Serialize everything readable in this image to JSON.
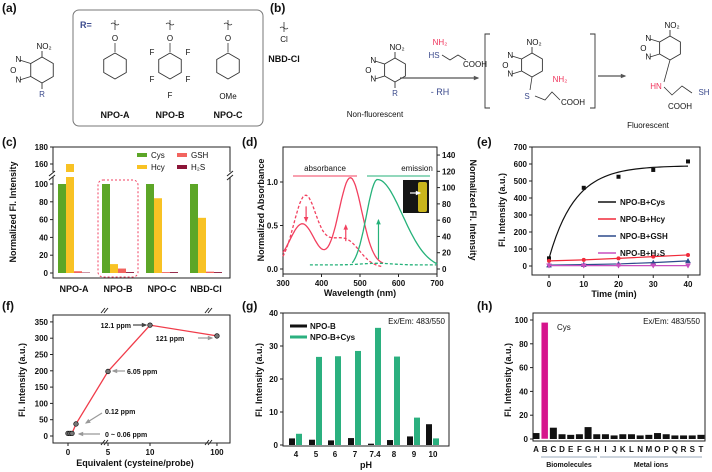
{
  "panel_letters": [
    "(a)",
    "(b)",
    "(c)",
    "(d)",
    "(e)",
    "(f)",
    "(g)",
    "(h)"
  ],
  "scheme_a": {
    "core_substituents": {
      "top": "NO2",
      "bottom": "R",
      "ring_atoms": [
        "N",
        "O",
        "N"
      ]
    },
    "r_label": "R=",
    "compounds": [
      {
        "name": "NPO-A",
        "group": "O-phenyl"
      },
      {
        "name": "NPO-B",
        "group": "O-pentafluorophenyl",
        "atoms": [
          "F",
          "F",
          "F",
          "F",
          "F"
        ]
      },
      {
        "name": "NPO-C",
        "group": "O-(4-methoxyphenyl)",
        "atoms": [
          "OMe"
        ]
      },
      {
        "name": "NBD-Cl",
        "group": "Cl"
      }
    ],
    "atom_o": "O",
    "atom_cl": "Cl"
  },
  "scheme_b": {
    "start_caption": "Non-fluorescent",
    "reagent": {
      "nh2": "NH2",
      "sh": "HS",
      "cooh": "COOH"
    },
    "arrow_label": "- RH",
    "intermediate": {
      "s": "S",
      "nh2": "NH2",
      "cooh": "COOH"
    },
    "product": {
      "hn": "HN",
      "sh": "SH",
      "cooh": "COOH"
    },
    "end_caption": "Fluorescent",
    "no2": "NO2",
    "colors": {
      "amine": "#f0325a",
      "r_group": "#3b4a8c"
    }
  },
  "chart_data": [
    {
      "panel": "(c)",
      "type": "bar",
      "ylabel": "Normalized Fl. Intensity",
      "categories": [
        "NPO-A",
        "NPO-B",
        "NPO-C",
        "NBD-Cl"
      ],
      "series": [
        {
          "name": "Cys",
          "color": "#5ca627",
          "values": [
            100,
            100,
            100,
            100
          ]
        },
        {
          "name": "Hcy",
          "color": "#f8c224",
          "values": [
            160,
            10,
            84,
            62
          ]
        },
        {
          "name": "GSH",
          "color": "#f2645f",
          "values": [
            2,
            5,
            1,
            1.5
          ]
        },
        {
          "name": "H2S",
          "color": "#8c1538",
          "values": [
            0.5,
            1,
            1,
            1
          ]
        }
      ],
      "yticks": [
        0,
        20,
        40,
        60,
        80,
        100,
        160,
        180
      ],
      "y_axis_break": [
        105,
        150
      ],
      "ylim": [
        0,
        180
      ],
      "legend": "top-right",
      "highlight": "NPO-B"
    },
    {
      "panel": "(d)",
      "type": "line",
      "xlabel": "Wavelength (nm)",
      "ylabel": "Normalized Absorbance",
      "y2label": "Normalized Fl. Intensity",
      "xlim": [
        300,
        700
      ],
      "ylim": [
        0,
        1.3
      ],
      "y2lim": [
        0,
        140
      ],
      "xticks": [
        300,
        400,
        500,
        600,
        700
      ],
      "yticks": [
        "0.0",
        "0.5",
        "1.0"
      ],
      "y2ticks": [
        0,
        20,
        40,
        60,
        80,
        100,
        120,
        140
      ],
      "annotations": [
        "absorbance",
        "emission"
      ],
      "series": [
        {
          "role": "absorbance, after Cys",
          "style": "solid",
          "color": "#f2405f",
          "peaks": [
            [
              350,
              0.47
            ],
            [
              475,
              1.0
            ]
          ]
        },
        {
          "role": "absorbance, before Cys",
          "style": "dashed",
          "color": "#f2405f",
          "peaks": [
            [
              358,
              0.82
            ],
            [
              465,
              0.3
            ]
          ]
        },
        {
          "role": "emission, after Cys",
          "style": "solid",
          "color": "#26b27a",
          "peaks": [
            [
              545,
              110
            ]
          ]
        },
        {
          "role": "emission, before Cys",
          "style": "dashed",
          "color": "#26b27a",
          "peaks": [
            [
              545,
              7
            ]
          ]
        }
      ]
    },
    {
      "panel": "(e)",
      "type": "scatter",
      "xlabel": "Time (min)",
      "ylabel": "Fl. Intensity (a.u.)",
      "xlim": [
        -5,
        45
      ],
      "ylim": [
        -50,
        700
      ],
      "xticks": [
        0,
        10,
        20,
        30,
        40
      ],
      "yticks": [
        0,
        100,
        200,
        300,
        400,
        500,
        600,
        700
      ],
      "x": [
        0,
        10,
        20,
        30,
        40
      ],
      "legend": "center-right",
      "series": [
        {
          "name": "NPO-B+Cys",
          "color": "#111111",
          "marker": "square",
          "values": [
            45,
            460,
            525,
            565,
            615
          ]
        },
        {
          "name": "NPO-B+Hcy",
          "color": "#f02a3a",
          "marker": "circle",
          "values": [
            30,
            36,
            45,
            55,
            65
          ]
        },
        {
          "name": "NPO-B+GSH",
          "color": "#2d4a8c",
          "marker": "triangle-up",
          "values": [
            5,
            8,
            12,
            20,
            30
          ]
        },
        {
          "name": "NPO-B+H2S",
          "color": "#c84fbf",
          "marker": "triangle-down",
          "values": [
            2,
            2,
            2,
            2,
            2
          ]
        }
      ]
    },
    {
      "panel": "(f)",
      "type": "line",
      "xlabel": "Equivalent (cysteine/probe)",
      "ylabel": "Fl. Intensity (a.u.)",
      "xticks": [
        0,
        5,
        10,
        100
      ],
      "x_axis_breaks": [
        5,
        10,
        100
      ],
      "yticks": [
        0,
        50,
        100,
        150,
        200,
        250,
        300,
        350
      ],
      "ylim": [
        -10,
        360
      ],
      "x": [
        0,
        0.25,
        0.5,
        1,
        5,
        10,
        100
      ],
      "values": [
        8,
        8,
        8,
        37,
        198,
        340,
        307
      ],
      "color": "#f03c4a",
      "annotations": [
        "0 ~ 0.06 ppm",
        "0.12 ppm",
        "6.05 ppm",
        "12.1 ppm",
        "121 ppm"
      ]
    },
    {
      "panel": "(g)",
      "type": "bar",
      "xlabel": "pH",
      "ylabel": "Fl. Intensity (a.u.)",
      "categories": [
        "4",
        "5",
        "6",
        "7",
        "7.4",
        "8",
        "9",
        "10"
      ],
      "yticks": [
        0,
        10,
        20,
        30,
        40
      ],
      "ylim": [
        0,
        40
      ],
      "legend": "top-left",
      "note": "Ex/Em: 483/550",
      "series": [
        {
          "name": "NPO-B",
          "color": "#111111",
          "values": [
            2.0,
            1.6,
            1.4,
            2.1,
            0.4,
            1.5,
            2.6,
            6.3
          ]
        },
        {
          "name": "NPO-B+Cys",
          "color": "#2bb07f",
          "values": [
            3.4,
            26.7,
            26.9,
            28.5,
            35.5,
            26.8,
            8.3,
            2.0
          ]
        }
      ]
    },
    {
      "panel": "(h)",
      "type": "bar",
      "ylabel": "Fl. Intensity (a.u.)",
      "categories": [
        "A",
        "B",
        "C",
        "D",
        "E",
        "F",
        "G",
        "H",
        "I",
        "J",
        "K",
        "L",
        "N",
        "M",
        "O",
        "P",
        "Q",
        "R",
        "S",
        "T"
      ],
      "values": [
        5,
        98,
        9.5,
        4,
        3.5,
        4,
        10,
        4,
        4,
        3,
        4,
        4,
        3,
        3.5,
        5,
        4,
        3,
        3,
        3,
        3.5
      ],
      "colors": {
        "default": "#111111",
        "highlight": "#d6148c"
      },
      "highlight_label": "Cys",
      "groups": [
        "Biomolecules",
        "Metal ions"
      ],
      "yticks": [
        0,
        20,
        40,
        60,
        80,
        100
      ],
      "ylim": [
        0,
        105
      ],
      "note": "Ex/Em: 483/550"
    }
  ]
}
